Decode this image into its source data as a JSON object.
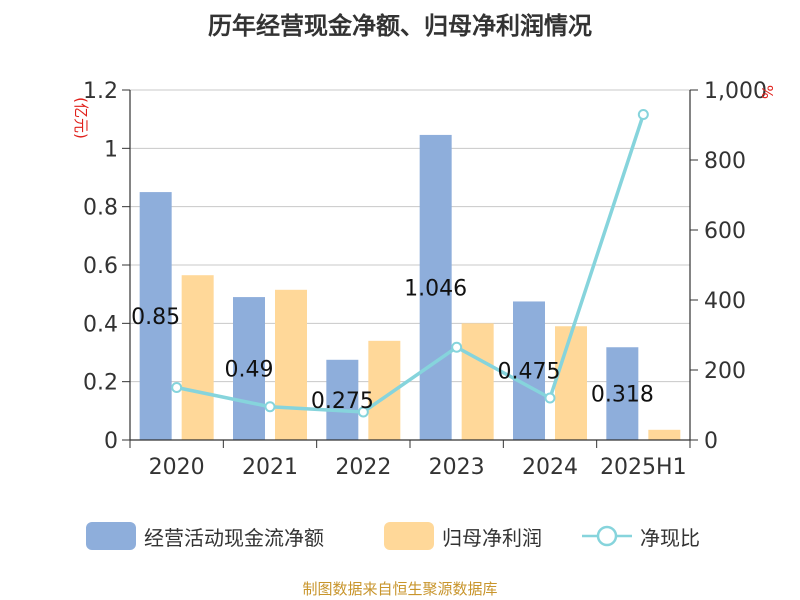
{
  "colors": {
    "cash_flow": "#8eaedb",
    "net_profit": "#ffd899",
    "ratio_line": "#86d4dc",
    "axis_unit": "#e0201b",
    "source": "#c8952c"
  },
  "chart_data": {
    "type": "bar",
    "title": "历年经营现金净额、归母净利润情况",
    "categories": [
      "2020",
      "2021",
      "2022",
      "2023",
      "2024",
      "2025H1"
    ],
    "y_left": {
      "unit": "(亿元)",
      "ylim": [
        0,
        1.2
      ],
      "ticks": [
        "0",
        "0.2",
        "0.4",
        "0.6",
        "0.8",
        "1",
        "1.2"
      ]
    },
    "y_right": {
      "unit": "%",
      "ylim": [
        0,
        1000
      ],
      "ticks": [
        "0",
        "200",
        "400",
        "600",
        "800",
        "1,000"
      ]
    },
    "series": [
      {
        "name": "经营活动现金流净额",
        "type": "bar",
        "axis": "left",
        "values": [
          0.85,
          0.49,
          0.275,
          1.046,
          0.475,
          0.318
        ],
        "labels": [
          "0.85",
          "0.49",
          "0.275",
          "1.046",
          "0.475",
          "0.318"
        ]
      },
      {
        "name": "归母净利润",
        "type": "bar",
        "axis": "left",
        "values": [
          0.565,
          0.515,
          0.34,
          0.4,
          0.39,
          0.035
        ]
      },
      {
        "name": "净现比",
        "type": "line",
        "axis": "right",
        "values": [
          150,
          95,
          80,
          265,
          120,
          930
        ]
      }
    ],
    "grid": true,
    "legend_position": "bottom"
  },
  "source_text": "制图数据来自恒生聚源数据库"
}
